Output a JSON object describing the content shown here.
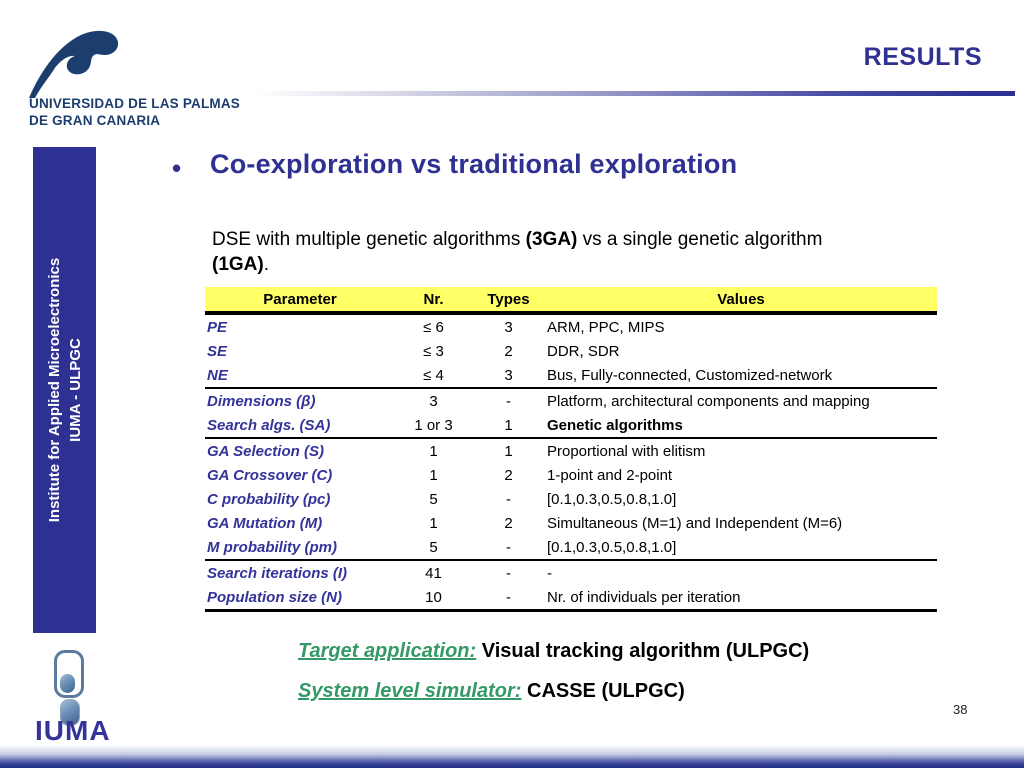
{
  "header": {
    "university_name_line1": "UNIVERSIDAD DE LAS PALMAS",
    "university_name_line2": "DE GRAN CANARIA",
    "section_title": "RESULTS"
  },
  "sidebar": {
    "line1": "Institute for Applied Microelectronics",
    "line2": "IUMA - ULPGC"
  },
  "main": {
    "bullet": "•",
    "title": "Co-exploration vs traditional exploration",
    "intro": {
      "seg1": "DSE with multiple genetic algorithms ",
      "bold1": "(3GA)",
      "seg2": " vs a single genetic algorithm",
      "bold2": "(1GA)",
      "period": "."
    },
    "table": {
      "columns": [
        "Parameter",
        "Nr.",
        "Types",
        "Values"
      ],
      "rows": [
        {
          "parameter": "PE",
          "nr": "≤ 6",
          "types": "3",
          "values": "ARM, PPC, MIPS",
          "separator_above": false,
          "values_bold": false
        },
        {
          "parameter": "SE",
          "nr": "≤ 3",
          "types": "2",
          "values": "DDR, SDR",
          "separator_above": false,
          "values_bold": false
        },
        {
          "parameter": "NE",
          "nr": "≤ 4",
          "types": "3",
          "values": "Bus, Fully-connected, Customized-network",
          "separator_above": false,
          "values_bold": false
        },
        {
          "parameter": "Dimensions (β)",
          "nr": "3",
          "types": "-",
          "values": "Platform, architectural components and mapping",
          "separator_above": true,
          "values_bold": false
        },
        {
          "parameter": "Search algs. (SA)",
          "nr": "1 or 3",
          "types": "1",
          "values": "Genetic algorithms",
          "separator_above": false,
          "values_bold": true
        },
        {
          "parameter": "GA Selection (S)",
          "nr": "1",
          "types": "1",
          "values": "Proportional with elitism",
          "separator_above": true,
          "values_bold": false
        },
        {
          "parameter": "GA Crossover (C)",
          "nr": "1",
          "types": "2",
          "values": "1-point and 2-point",
          "separator_above": false,
          "values_bold": false
        },
        {
          "parameter": "C probability (pc)",
          "nr": "5",
          "types": "-",
          "values": "[0.1,0.3,0.5,0.8,1.0]",
          "separator_above": false,
          "values_bold": false
        },
        {
          "parameter": "GA Mutation (M)",
          "nr": "1",
          "types": "2",
          "values": "Simultaneous (M=1) and Independent (M=6)",
          "separator_above": false,
          "values_bold": false
        },
        {
          "parameter": "M probability (pm)",
          "nr": "5",
          "types": "-",
          "values": "[0.1,0.3,0.5,0.8,1.0]",
          "separator_above": false,
          "values_bold": false
        },
        {
          "parameter": "Search iterations (I)",
          "nr": "41",
          "types": "-",
          "values": "-",
          "separator_above": true,
          "values_bold": false
        },
        {
          "parameter": "Population size (N)",
          "nr": "10",
          "types": "-",
          "values": "Nr. of individuals per iteration",
          "separator_above": false,
          "values_bold": false
        }
      ]
    },
    "footnotes": [
      {
        "label": "Target application:",
        "text": " Visual tracking algorithm (ULPGC)"
      },
      {
        "label": "System level simulator:",
        "text": " CASSE (ULPGC)"
      }
    ]
  },
  "footer": {
    "logo_text": "IUMA",
    "page_number": "38"
  },
  "colors": {
    "accent_indigo": "#2E3192",
    "table_param_blue": "#333399",
    "table_header_yellow": "#FFFF66",
    "footnote_green": "#339966",
    "logo_navy": "#1B3E6E"
  }
}
